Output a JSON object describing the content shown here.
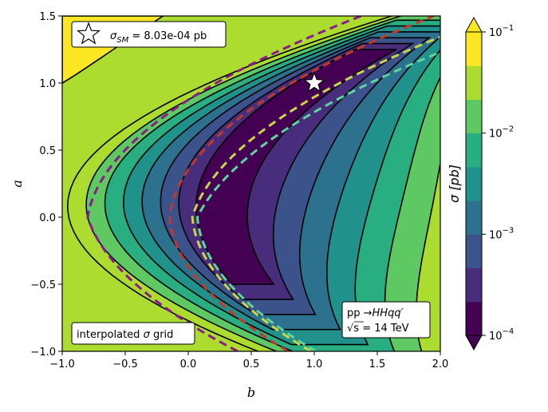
{
  "chart_data": {
    "type": "contour",
    "title": "",
    "xlabel": "b",
    "ylabel": "a",
    "xlim": [
      -1.0,
      2.0
    ],
    "ylim": [
      -1.0,
      1.5
    ],
    "x_ticks": [
      "-1.0",
      "-0.5",
      "0.0",
      "0.5",
      "1.0",
      "1.5",
      "2.0"
    ],
    "y_ticks": [
      "-1.0",
      "-0.5",
      "0.0",
      "0.5",
      "1.0",
      "1.5"
    ],
    "colorbar": {
      "label": "σ [pb]",
      "scale": "log",
      "range": [
        0.0001,
        0.1
      ],
      "tick_exponents": [
        "-4",
        "-3",
        "-2",
        "-1"
      ],
      "levels": 9,
      "colors": [
        "#440154",
        "#472d7b",
        "#3b528b",
        "#2c728e",
        "#21918c",
        "#28ae80",
        "#5ec962",
        "#addc30",
        "#fde725"
      ],
      "under_color": "#440154",
      "over_color": "#fde725"
    },
    "sm_point": {
      "b": 1.0,
      "a": 1.0,
      "label": "σ_SM = 8.03e-04 pb"
    },
    "dashed_contours": [
      {
        "color": "#8b1a8b"
      },
      {
        "color": "#c0392b"
      },
      {
        "color": "#c8d64a"
      },
      {
        "color": "#5fd3a0"
      }
    ],
    "annotations": {
      "sm_box_prefix": "σ",
      "sm_box_sub": "SM",
      "sm_box_value": " = 8.03e-04 pb",
      "grid_box_prefix": "interpolated ",
      "grid_box_sigma": "σ",
      "grid_box_suffix": " grid",
      "process_line1_a": "pp ",
      "process_line1_b": "→HHqq′",
      "process_line2_a": "√s",
      "process_line2_b": " = 14 TeV"
    }
  }
}
